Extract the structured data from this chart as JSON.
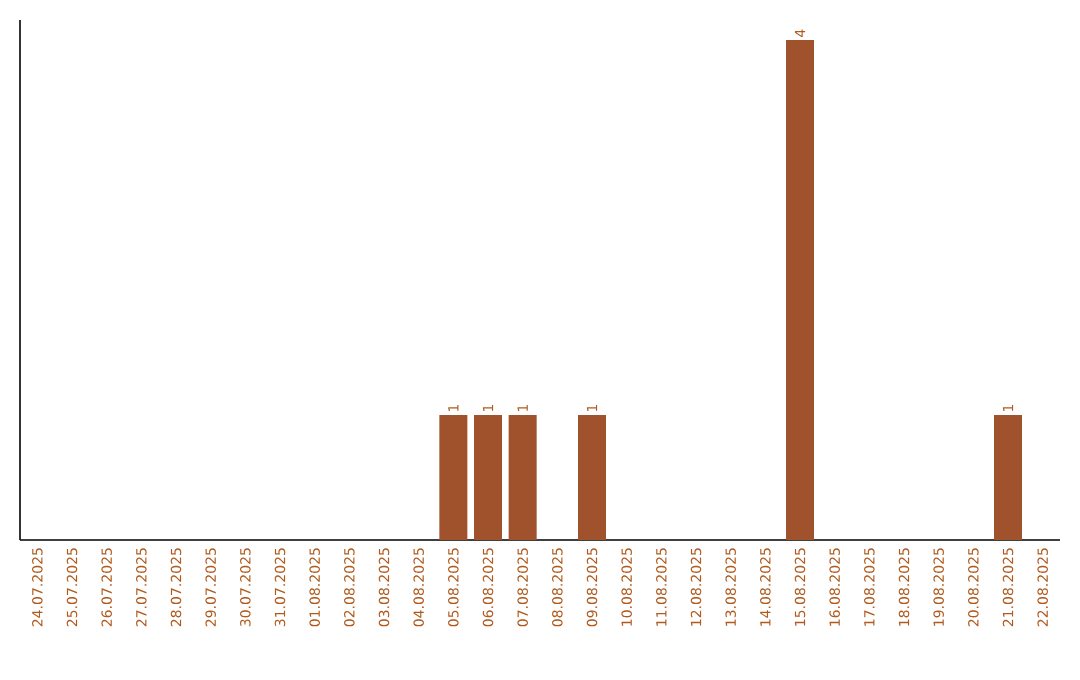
{
  "chart_data": {
    "type": "bar",
    "categories": [
      "24.07.2025",
      "25.07.2025",
      "26.07.2025",
      "27.07.2025",
      "28.07.2025",
      "29.07.2025",
      "30.07.2025",
      "31.07.2025",
      "01.08.2025",
      "02.08.2025",
      "03.08.2025",
      "04.08.2025",
      "05.08.2025",
      "06.08.2025",
      "07.08.2025",
      "08.08.2025",
      "09.08.2025",
      "10.08.2025",
      "11.08.2025",
      "12.08.2025",
      "13.08.2025",
      "14.08.2025",
      "15.08.2025",
      "16.08.2025",
      "17.08.2025",
      "18.08.2025",
      "19.08.2025",
      "20.08.2025",
      "21.08.2025",
      "22.08.2025"
    ],
    "values": [
      null,
      null,
      null,
      null,
      null,
      null,
      null,
      null,
      null,
      null,
      null,
      null,
      1,
      1,
      1,
      null,
      1,
      null,
      null,
      null,
      null,
      null,
      4,
      null,
      null,
      null,
      null,
      null,
      1,
      null
    ],
    "data_labels": true,
    "color": "#a0522d",
    "tick_labels": "x",
    "grid": false
  }
}
